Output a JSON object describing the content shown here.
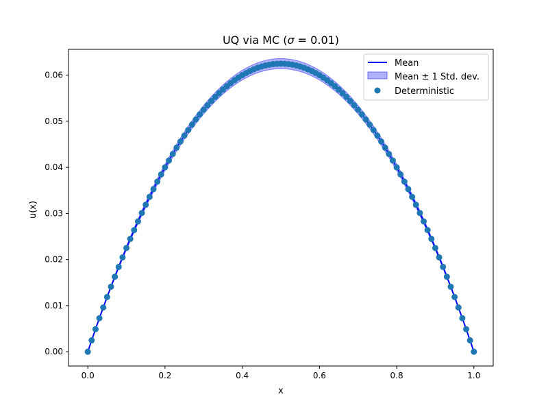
{
  "chart_data": {
    "type": "line",
    "title_prefix": "UQ via MC (",
    "title_sigma": "σ",
    "title_suffix": " = 0.01)",
    "xlabel": "x",
    "ylabel": "u(x)",
    "xlim": [
      -0.05,
      1.05
    ],
    "ylim": [
      -0.0031,
      0.0656
    ],
    "x_ticks": [
      0.0,
      0.2,
      0.4,
      0.6,
      0.8,
      1.0
    ],
    "x_tick_labels": [
      "0.0",
      "0.2",
      "0.4",
      "0.6",
      "0.8",
      "1.0"
    ],
    "y_ticks": [
      0.0,
      0.01,
      0.02,
      0.03,
      0.04,
      0.05,
      0.06
    ],
    "y_tick_labels": [
      "0.00",
      "0.01",
      "0.02",
      "0.03",
      "0.04",
      "0.05",
      "0.06"
    ],
    "model": "u(x) = x(1 - x)/4",
    "x": [
      0.0,
      0.01,
      0.02,
      0.03,
      0.04,
      0.05,
      0.06,
      0.07,
      0.08,
      0.09,
      0.1,
      0.11,
      0.12,
      0.13,
      0.14,
      0.15,
      0.16,
      0.17,
      0.18,
      0.19,
      0.2,
      0.21,
      0.22,
      0.23,
      0.24,
      0.25,
      0.26,
      0.27,
      0.28,
      0.29,
      0.3,
      0.31,
      0.32,
      0.33,
      0.34,
      0.35,
      0.36,
      0.37,
      0.38,
      0.39,
      0.4,
      0.41,
      0.42,
      0.43,
      0.44,
      0.45,
      0.46,
      0.47,
      0.48,
      0.49,
      0.5,
      0.51,
      0.52,
      0.53,
      0.54,
      0.55,
      0.56,
      0.57,
      0.58,
      0.59,
      0.6,
      0.61,
      0.62,
      0.63,
      0.64,
      0.65,
      0.66,
      0.67,
      0.68,
      0.69,
      0.7,
      0.71,
      0.72,
      0.73,
      0.74,
      0.75,
      0.76,
      0.77,
      0.78,
      0.79,
      0.8,
      0.81,
      0.82,
      0.83,
      0.84,
      0.85,
      0.86,
      0.87,
      0.88,
      0.89,
      0.9,
      0.91,
      0.92,
      0.93,
      0.94,
      0.95,
      0.96,
      0.97,
      0.98,
      0.99,
      1.0
    ],
    "series": [
      {
        "name": "Mean",
        "kind": "line",
        "color": "#0000ff",
        "values_from": "model"
      },
      {
        "name": "Mean ± 1 Std. dev.",
        "kind": "band",
        "color": "#0000ff",
        "std_at_center": 0.0011,
        "std_shape": "proportional to u(x)"
      },
      {
        "name": "Deterministic",
        "kind": "scatter",
        "color": "#1f77b4",
        "values_from": "model"
      }
    ],
    "legend_position": "top-right",
    "grid": false
  }
}
